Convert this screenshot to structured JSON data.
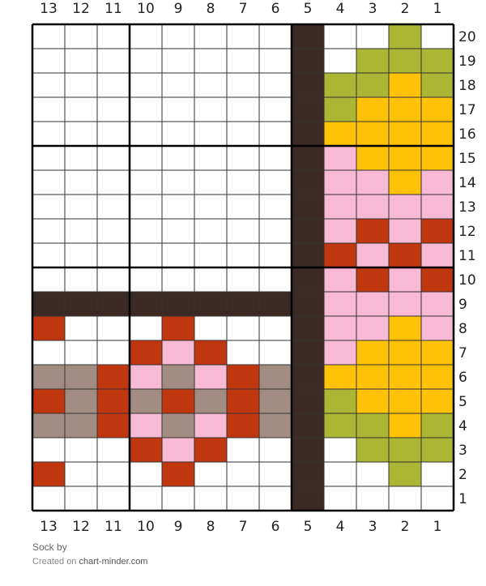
{
  "footer": {
    "title": "Sock",
    "by": "by",
    "created_on": "Created on",
    "site": "chart-minder.com"
  },
  "colors": {
    "empty": "#ffffff",
    "dark_brown": "#3c2924",
    "red": "#c0360f",
    "pink": "#f7b9d3",
    "taupe": "#a38c82",
    "olive": "#aab634",
    "yellow": "#ffc206",
    "grid_line": "#333333",
    "bold_line": "#000000"
  },
  "chart_data": {
    "type": "knitting-grid",
    "columns": 13,
    "rows": 20,
    "column_labels": [
      "13",
      "12",
      "11",
      "10",
      "9",
      "8",
      "7",
      "6",
      "5",
      "4",
      "3",
      "2",
      "1"
    ],
    "row_labels": [
      "20",
      "19",
      "18",
      "17",
      "16",
      "15",
      "14",
      "13",
      "12",
      "11",
      "10",
      "9",
      "8",
      "7",
      "6",
      "5",
      "4",
      "3",
      "2",
      "1"
    ],
    "legend": {
      ".": "empty",
      "D": "dark_brown",
      "R": "red",
      "P": "pink",
      "T": "taupe",
      "G": "olive",
      "Y": "yellow"
    },
    "cells": [
      "........D..G.",
      "........D.GGG",
      "........DGGYG",
      "........DGYYY",
      "........DYYYY",
      "........DPYYY",
      "........DPPYP",
      "........DPPPP",
      "........DPRPR",
      "........DRPRP",
      "........DPRPR",
      "DDDDDDDDDPPPP",
      "R...R...DPPYP",
      "...RPR..DPYYY",
      "TTRPTPRTDYYYY",
      "RTRTRTRTDGYYY",
      "TTRPTPRTDGGYG",
      "...RPR..D.GGG",
      "R...R...D..G.",
      "........D...."
    ]
  }
}
